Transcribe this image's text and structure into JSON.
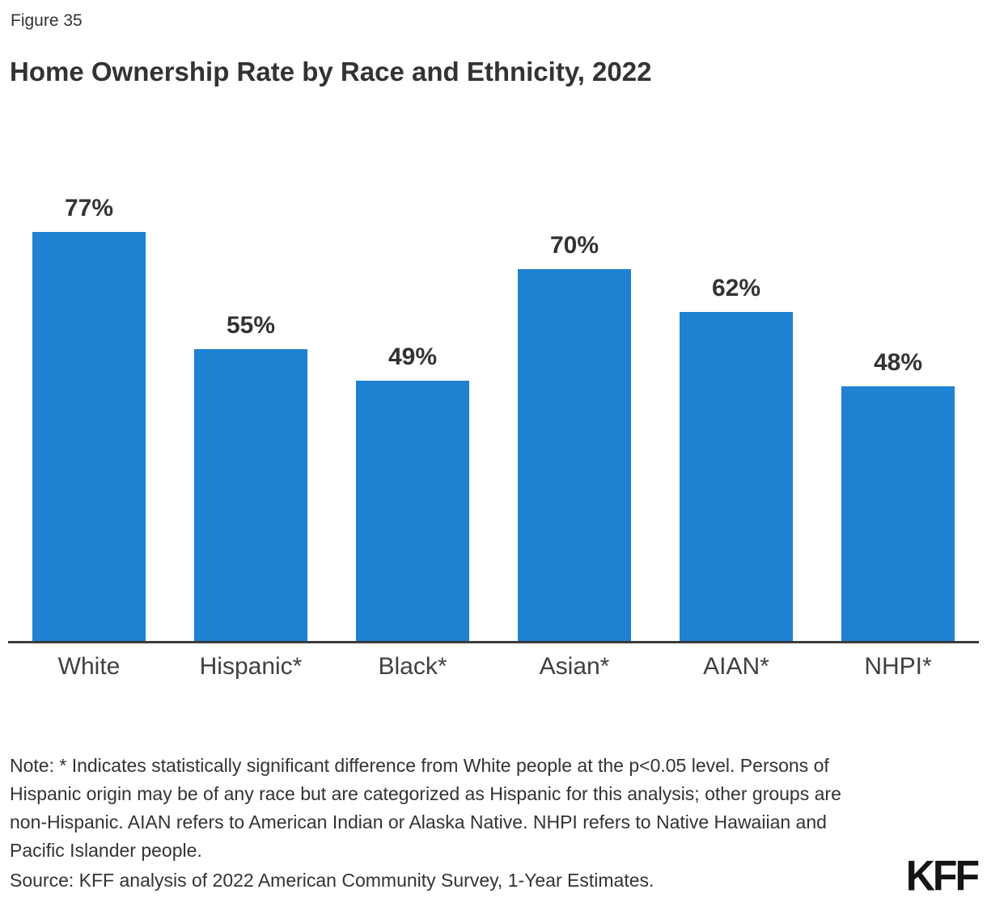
{
  "figure_label": "Figure 35",
  "title": "Home Ownership Rate by Race and Ethnicity, 2022",
  "chart_data": {
    "type": "bar",
    "categories": [
      "White",
      "Hispanic*",
      "Black*",
      "Asian*",
      "AIAN*",
      "NHPI*"
    ],
    "values": [
      77,
      55,
      49,
      70,
      62,
      48
    ],
    "value_labels": [
      "77%",
      "55%",
      "49%",
      "70%",
      "62%",
      "48%"
    ],
    "title": "Home Ownership Rate by Race and Ethnicity, 2022",
    "xlabel": "",
    "ylabel": "",
    "ylim": [
      0,
      86
    ],
    "grid": false,
    "legend": "none",
    "bar_color": "#1e81d2",
    "axis_color": "#3c3c3c"
  },
  "note": "Note: * Indicates statistically significant difference from White people at the p<0.05 level. Persons of Hispanic origin may be of any race but are categorized as Hispanic for this analysis; other groups are non-Hispanic. AIAN refers to American Indian or Alaska Native. NHPI refers to Native Hawaiian and Pacific Islander people.",
  "source": "Source: KFF analysis of 2022 American Community Survey, 1-Year Estimates.",
  "logo_text": "KFF"
}
